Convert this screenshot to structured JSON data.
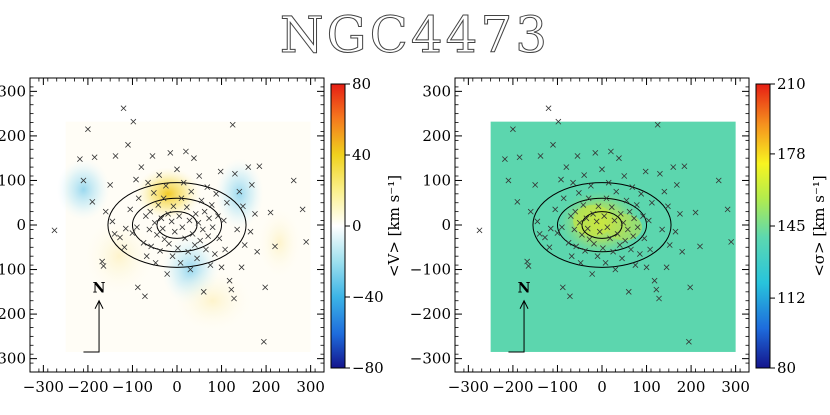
{
  "chart_data": [
    {
      "type": "heatmap",
      "panel": "velocity",
      "title": "NGC4473",
      "xlim": [
        -330,
        330
      ],
      "ylim": [
        -330,
        330
      ],
      "xticks": [
        -300,
        -200,
        -100,
        0,
        100,
        200,
        300
      ],
      "yticks": [
        -300,
        -200,
        -100,
        0,
        100,
        200,
        300
      ],
      "colorbar": {
        "label": "<V> [km s⁻¹]",
        "range": [
          -80,
          80
        ],
        "ticks": [
          80,
          40,
          0,
          -40,
          -80
        ]
      },
      "north_label": "N",
      "contours": [
        {
          "a": 155,
          "b": 95
        },
        {
          "a": 100,
          "b": 60
        },
        {
          "a": 45,
          "b": 30
        }
      ]
    },
    {
      "type": "heatmap",
      "panel": "dispersion",
      "xlim": [
        -330,
        330
      ],
      "ylim": [
        -330,
        330
      ],
      "xticks": [
        -300,
        -200,
        -100,
        0,
        100,
        200,
        300
      ],
      "yticks": [
        -300,
        -200,
        -100,
        0,
        100,
        200,
        300
      ],
      "colorbar": {
        "label": "<σ> [km s⁻¹]",
        "range": [
          80,
          210
        ],
        "ticks": [
          210,
          178,
          145,
          112,
          80
        ]
      },
      "north_label": "N",
      "contours": [
        {
          "a": 155,
          "b": 95
        },
        {
          "a": 100,
          "b": 60
        },
        {
          "a": 45,
          "b": 30
        }
      ]
    }
  ],
  "points": [
    [
      -275,
      -12
    ],
    [
      -218,
      148
    ],
    [
      -210,
      100
    ],
    [
      -200,
      215
    ],
    [
      -190,
      52
    ],
    [
      -185,
      152
    ],
    [
      -168,
      -82
    ],
    [
      -165,
      -92
    ],
    [
      -160,
      30
    ],
    [
      -150,
      90
    ],
    [
      -145,
      8
    ],
    [
      -140,
      -20
    ],
    [
      -138,
      155
    ],
    [
      -128,
      -28
    ],
    [
      -120,
      262
    ],
    [
      -118,
      -50
    ],
    [
      -115,
      -8
    ],
    [
      -110,
      180
    ],
    [
      -105,
      35
    ],
    [
      -100,
      -18
    ],
    [
      -98,
      232
    ],
    [
      -92,
      102
    ],
    [
      -90,
      -5
    ],
    [
      -88,
      -140
    ],
    [
      -86,
      60
    ],
    [
      -80,
      130
    ],
    [
      -75,
      -40
    ],
    [
      -72,
      -160
    ],
    [
      -70,
      20
    ],
    [
      -68,
      -70
    ],
    [
      -65,
      95
    ],
    [
      -62,
      -10
    ],
    [
      -60,
      30
    ],
    [
      -58,
      -48
    ],
    [
      -55,
      155
    ],
    [
      -52,
      72
    ],
    [
      -50,
      5
    ],
    [
      -48,
      -85
    ],
    [
      -45,
      -22
    ],
    [
      -42,
      45
    ],
    [
      -40,
      112
    ],
    [
      -38,
      -58
    ],
    [
      -35,
      15
    ],
    [
      -32,
      -8
    ],
    [
      -30,
      60
    ],
    [
      -28,
      -32
    ],
    [
      -25,
      88
    ],
    [
      -22,
      -110
    ],
    [
      -20,
      25
    ],
    [
      -18,
      -42
    ],
    [
      -15,
      162
    ],
    [
      -12,
      8
    ],
    [
      -10,
      -70
    ],
    [
      -8,
      42
    ],
    [
      -5,
      -15
    ],
    [
      0,
      125
    ],
    [
      2,
      -52
    ],
    [
      5,
      20
    ],
    [
      8,
      -85
    ],
    [
      10,
      60
    ],
    [
      12,
      -5
    ],
    [
      15,
      95
    ],
    [
      18,
      -30
    ],
    [
      20,
      165
    ],
    [
      22,
      40
    ],
    [
      25,
      -60
    ],
    [
      28,
      10
    ],
    [
      30,
      -100
    ],
    [
      32,
      75
    ],
    [
      35,
      -20
    ],
    [
      38,
      150
    ],
    [
      40,
      -45
    ],
    [
      42,
      25
    ],
    [
      45,
      -75
    ],
    [
      48,
      5
    ],
    [
      50,
      110
    ],
    [
      52,
      -35
    ],
    [
      55,
      55
    ],
    [
      58,
      -10
    ],
    [
      60,
      -150
    ],
    [
      62,
      30
    ],
    [
      65,
      -55
    ],
    [
      68,
      85
    ],
    [
      70,
      -25
    ],
    [
      72,
      15
    ],
    [
      75,
      -90
    ],
    [
      78,
      45
    ],
    [
      80,
      -5
    ],
    [
      85,
      -65
    ],
    [
      88,
      70
    ],
    [
      92,
      20
    ],
    [
      95,
      -30
    ],
    [
      98,
      120
    ],
    [
      100,
      -95
    ],
    [
      105,
      10
    ],
    [
      108,
      -55
    ],
    [
      112,
      50
    ],
    [
      118,
      -125
    ],
    [
      122,
      -145
    ],
    [
      125,
      225
    ],
    [
      128,
      -165
    ],
    [
      130,
      115
    ],
    [
      135,
      -10
    ],
    [
      140,
      75
    ],
    [
      145,
      -95
    ],
    [
      148,
      42
    ],
    [
      152,
      -45
    ],
    [
      160,
      130
    ],
    [
      165,
      -15
    ],
    [
      168,
      90
    ],
    [
      175,
      25
    ],
    [
      180,
      -60
    ],
    [
      185,
      132
    ],
    [
      195,
      -262
    ],
    [
      198,
      -140
    ],
    [
      210,
      28
    ],
    [
      220,
      -48
    ],
    [
      262,
      100
    ],
    [
      282,
      35
    ],
    [
      290,
      -38
    ]
  ]
}
